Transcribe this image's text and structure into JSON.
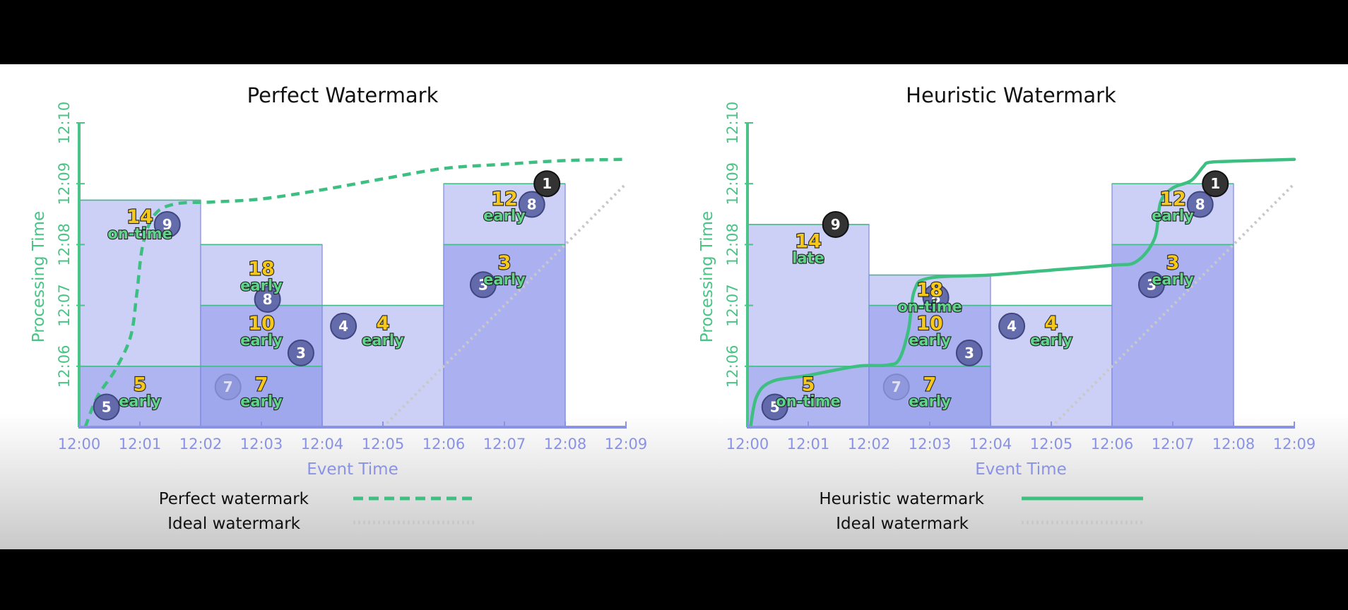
{
  "chart_data": [
    {
      "type": "scatter",
      "title": "Perfect Watermark",
      "xlabel": "Event Time",
      "ylabel": "Processing Time",
      "x_ticks": [
        "12:00",
        "12:01",
        "12:02",
        "12:03",
        "12:04",
        "12:05",
        "12:06",
        "12:07",
        "12:08",
        "12:09"
      ],
      "y_ticks": [
        "12:06",
        "12:07",
        "12:08",
        "12:09",
        "12:10"
      ],
      "xlim": [
        0,
        9
      ],
      "ylim": [
        5,
        10
      ],
      "colors": {
        "pane_early": "#c3c8f5",
        "pane_final": "#a4acee",
        "data_bg": "#9aa3ec",
        "watermark": "#3dbf81",
        "ideal": "#c8c8c8",
        "axis_x": "#8a92e6",
        "axis_y": "#49c486"
      },
      "pane_rects": [
        {
          "x0": 0,
          "x1": 2,
          "y0": 5,
          "y1": 8.73
        },
        {
          "x0": 2,
          "x1": 4,
          "y0": 5,
          "y1": 8
        },
        {
          "x0": 2,
          "x1": 4,
          "y0": 5,
          "y1": 7
        },
        {
          "x0": 4,
          "x1": 6,
          "y0": 5,
          "y1": 7
        },
        {
          "x0": 6,
          "x1": 8,
          "y0": 5,
          "y1": 9
        },
        {
          "x0": 6,
          "x1": 8,
          "y0": 5,
          "y1": 8
        },
        {
          "x0": 0,
          "x1": 2,
          "y0": 5,
          "y1": 6
        },
        {
          "x0": 2,
          "x1": 4,
          "y0": 5,
          "y1": 6
        }
      ],
      "data_points": [
        {
          "label": "5",
          "x": 0.45,
          "y": 5.33,
          "style": "normal"
        },
        {
          "label": "9",
          "x": 1.45,
          "y": 8.33,
          "style": "normal"
        },
        {
          "label": "7",
          "x": 2.45,
          "y": 5.66,
          "style": "faded"
        },
        {
          "label": "8",
          "x": 3.1,
          "y": 7.1,
          "style": "normal"
        },
        {
          "label": "3",
          "x": 3.65,
          "y": 6.22,
          "style": "normal"
        },
        {
          "label": "4",
          "x": 4.35,
          "y": 6.66,
          "style": "normal"
        },
        {
          "label": "3",
          "x": 6.65,
          "y": 7.34,
          "style": "normal"
        },
        {
          "label": "8",
          "x": 7.45,
          "y": 8.66,
          "style": "normal"
        },
        {
          "label": "1",
          "x": 7.7,
          "y": 9.0,
          "style": "dark"
        }
      ],
      "pane_results": [
        {
          "value": "14",
          "timing": "on-time",
          "x": 1.0,
          "y": 8.35
        },
        {
          "value": "18",
          "timing": "early",
          "x": 3.0,
          "y": 7.5
        },
        {
          "value": "10",
          "timing": "early",
          "x": 3.0,
          "y": 6.6
        },
        {
          "value": "7",
          "timing": "early",
          "x": 3.0,
          "y": 5.6
        },
        {
          "value": "5",
          "timing": "early",
          "x": 1.0,
          "y": 5.6
        },
        {
          "value": "4",
          "timing": "early",
          "x": 5.0,
          "y": 6.6
        },
        {
          "value": "12",
          "timing": "early",
          "x": 7.0,
          "y": 8.65
        },
        {
          "value": "3",
          "timing": "early",
          "x": 7.0,
          "y": 7.6
        }
      ],
      "watermark": {
        "name": "Perfect watermark",
        "style": "dashed",
        "points": [
          [
            0.1,
            5.0
          ],
          [
            0.3,
            5.5
          ],
          [
            0.6,
            5.95
          ],
          [
            0.85,
            6.5
          ],
          [
            0.95,
            7.2
          ],
          [
            1.05,
            8.0
          ],
          [
            1.25,
            8.5
          ],
          [
            1.6,
            8.67
          ],
          [
            2.2,
            8.7
          ],
          [
            3.0,
            8.75
          ],
          [
            4.0,
            8.9
          ],
          [
            5.0,
            9.08
          ],
          [
            6.0,
            9.25
          ],
          [
            7.0,
            9.32
          ],
          [
            8.0,
            9.38
          ],
          [
            9.0,
            9.4
          ]
        ]
      },
      "ideal": {
        "name": "Ideal watermark",
        "style": "dotted",
        "points": [
          [
            5.0,
            5.0
          ],
          [
            9.0,
            9.0
          ]
        ]
      }
    },
    {
      "type": "scatter",
      "title": "Heuristic Watermark",
      "xlabel": "Event Time",
      "ylabel": "Processing Time",
      "x_ticks": [
        "12:00",
        "12:01",
        "12:02",
        "12:03",
        "12:04",
        "12:05",
        "12:06",
        "12:07",
        "12:08",
        "12:09"
      ],
      "y_ticks": [
        "12:06",
        "12:07",
        "12:08",
        "12:09",
        "12:10"
      ],
      "xlim": [
        0,
        9
      ],
      "ylim": [
        5,
        10
      ],
      "colors": {
        "pane_early": "#c3c8f5",
        "pane_final": "#a4acee",
        "data_bg": "#9aa3ec",
        "watermark": "#3dbf81",
        "ideal": "#c8c8c8",
        "axis_x": "#8a92e6",
        "axis_y": "#49c486"
      },
      "pane_rects": [
        {
          "x0": 0,
          "x1": 2,
          "y0": 5,
          "y1": 8.33
        },
        {
          "x0": 2,
          "x1": 4,
          "y0": 5,
          "y1": 7.5
        },
        {
          "x0": 2,
          "x1": 4,
          "y0": 5,
          "y1": 7
        },
        {
          "x0": 4,
          "x1": 6,
          "y0": 5,
          "y1": 7
        },
        {
          "x0": 6,
          "x1": 8,
          "y0": 5,
          "y1": 9
        },
        {
          "x0": 6,
          "x1": 8,
          "y0": 5,
          "y1": 8
        },
        {
          "x0": 0,
          "x1": 2,
          "y0": 5,
          "y1": 6
        },
        {
          "x0": 2,
          "x1": 4,
          "y0": 5,
          "y1": 6
        }
      ],
      "data_points": [
        {
          "label": "5",
          "x": 0.45,
          "y": 5.33,
          "style": "normal"
        },
        {
          "label": "9",
          "x": 1.45,
          "y": 8.33,
          "style": "dark"
        },
        {
          "label": "7",
          "x": 2.45,
          "y": 5.66,
          "style": "faded"
        },
        {
          "label": "8",
          "x": 3.1,
          "y": 7.13,
          "style": "normal"
        },
        {
          "label": "3",
          "x": 3.65,
          "y": 6.22,
          "style": "normal"
        },
        {
          "label": "4",
          "x": 4.35,
          "y": 6.66,
          "style": "normal"
        },
        {
          "label": "3",
          "x": 6.65,
          "y": 7.34,
          "style": "normal"
        },
        {
          "label": "8",
          "x": 7.45,
          "y": 8.66,
          "style": "normal"
        },
        {
          "label": "1",
          "x": 7.7,
          "y": 9.0,
          "style": "dark"
        }
      ],
      "pane_results": [
        {
          "value": "14",
          "timing": "late",
          "x": 1.0,
          "y": 7.95
        },
        {
          "value": "18",
          "timing": "on-time",
          "x": 3.0,
          "y": 7.15
        },
        {
          "value": "10",
          "timing": "early",
          "x": 3.0,
          "y": 6.6
        },
        {
          "value": "7",
          "timing": "early",
          "x": 3.0,
          "y": 5.6
        },
        {
          "value": "5",
          "timing": "on-time",
          "x": 1.0,
          "y": 5.6
        },
        {
          "value": "4",
          "timing": "early",
          "x": 5.0,
          "y": 6.6
        },
        {
          "value": "12",
          "timing": "early",
          "x": 7.0,
          "y": 8.65
        },
        {
          "value": "3",
          "timing": "early",
          "x": 7.0,
          "y": 7.6
        }
      ],
      "watermark": {
        "name": "Heuristic watermark",
        "style": "solid",
        "points": [
          [
            0.05,
            5.0
          ],
          [
            0.15,
            5.5
          ],
          [
            0.4,
            5.75
          ],
          [
            1.0,
            5.85
          ],
          [
            1.8,
            6.0
          ],
          [
            2.3,
            6.02
          ],
          [
            2.5,
            6.12
          ],
          [
            2.65,
            6.6
          ],
          [
            2.75,
            7.25
          ],
          [
            3.0,
            7.45
          ],
          [
            4.0,
            7.5
          ],
          [
            5.0,
            7.58
          ],
          [
            6.0,
            7.66
          ],
          [
            6.4,
            7.72
          ],
          [
            6.7,
            8.1
          ],
          [
            6.8,
            8.7
          ],
          [
            7.0,
            8.93
          ],
          [
            7.3,
            9.05
          ],
          [
            7.5,
            9.28
          ],
          [
            7.6,
            9.35
          ],
          [
            8.0,
            9.37
          ],
          [
            9.0,
            9.4
          ]
        ]
      },
      "ideal": {
        "name": "Ideal watermark",
        "style": "dotted",
        "points": [
          [
            5.0,
            5.0
          ],
          [
            9.0,
            9.0
          ]
        ]
      }
    }
  ]
}
